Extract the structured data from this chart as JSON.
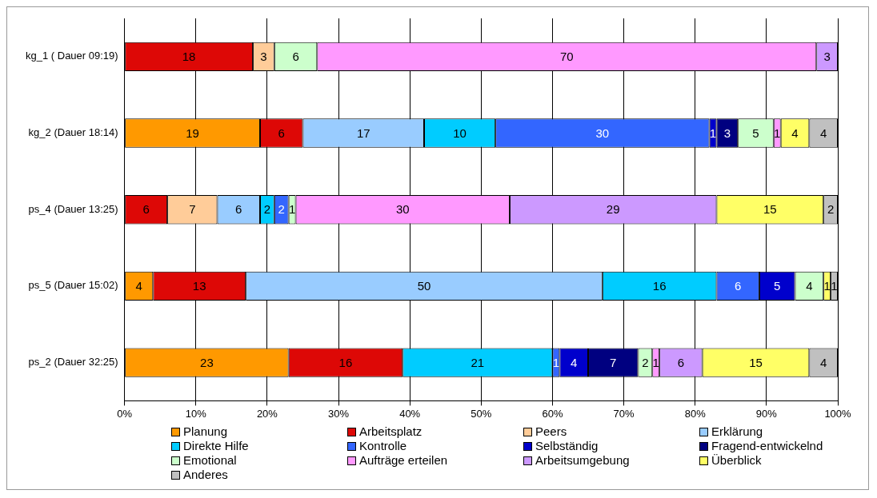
{
  "chart_data": {
    "type": "bar",
    "orientation": "horizontal",
    "stacked": true,
    "data_labels": true,
    "grid": "x",
    "legend": "bottom",
    "categories": [
      "kg_1 ( Dauer 09:19)",
      "kg_2 (Dauer 18:14)",
      "ps_4 (Dauer 13:25)",
      "ps_5 (Dauer 15:02)",
      "ps_2 (Dauer 32:25)"
    ],
    "xlim": [
      0,
      100
    ],
    "xticks": [
      {
        "value": 0,
        "label": "0%"
      },
      {
        "value": 10,
        "label": "10%"
      },
      {
        "value": 20,
        "label": "20%"
      },
      {
        "value": 30,
        "label": "30%"
      },
      {
        "value": 40,
        "label": "40%"
      },
      {
        "value": 50,
        "label": "50%"
      },
      {
        "value": 60,
        "label": "60%"
      },
      {
        "value": 70,
        "label": "70%"
      },
      {
        "value": 80,
        "label": "80%"
      },
      {
        "value": 90,
        "label": "90%"
      },
      {
        "value": 100,
        "label": "100%"
      }
    ],
    "series": [
      {
        "name": "Planung",
        "color": "#ff9900",
        "values": [
          null,
          19,
          null,
          4,
          23
        ]
      },
      {
        "name": "Arbeitsplatz",
        "color": "#dd0806",
        "values": [
          18,
          6,
          6,
          13,
          16
        ]
      },
      {
        "name": "Peers",
        "color": "#ffcc99",
        "values": [
          3,
          null,
          7,
          null,
          null
        ]
      },
      {
        "name": "Erklärung",
        "color": "#99ccff",
        "values": [
          null,
          17,
          6,
          50,
          null
        ]
      },
      {
        "name": "Direkte Hilfe",
        "color": "#00ccff",
        "values": [
          null,
          10,
          2,
          16,
          21
        ]
      },
      {
        "name": "Kontrolle",
        "color": "#3366ff",
        "values": [
          null,
          30,
          2,
          6,
          1
        ]
      },
      {
        "name": "Selbständig",
        "color": "#0000cc",
        "values": [
          null,
          1,
          null,
          5,
          4
        ]
      },
      {
        "name": "Fragend-entwickelnd",
        "color": "#000080",
        "values": [
          null,
          3,
          null,
          null,
          7
        ]
      },
      {
        "name": "Emotional",
        "color": "#ccffcc",
        "values": [
          6,
          5,
          1,
          4,
          2
        ]
      },
      {
        "name": "Aufträge erteilen",
        "color": "#ff99ff",
        "values": [
          70,
          1,
          30,
          null,
          1
        ]
      },
      {
        "name": "Arbeitsumgebung",
        "color": "#cc99ff",
        "values": [
          3,
          null,
          29,
          null,
          6
        ]
      },
      {
        "name": "Überblick",
        "color": "#ffff66",
        "values": [
          null,
          4,
          15,
          1,
          15
        ]
      },
      {
        "name": "Anderes",
        "color": "#c0c0c0",
        "values": [
          null,
          4,
          2,
          1,
          4
        ]
      }
    ]
  }
}
